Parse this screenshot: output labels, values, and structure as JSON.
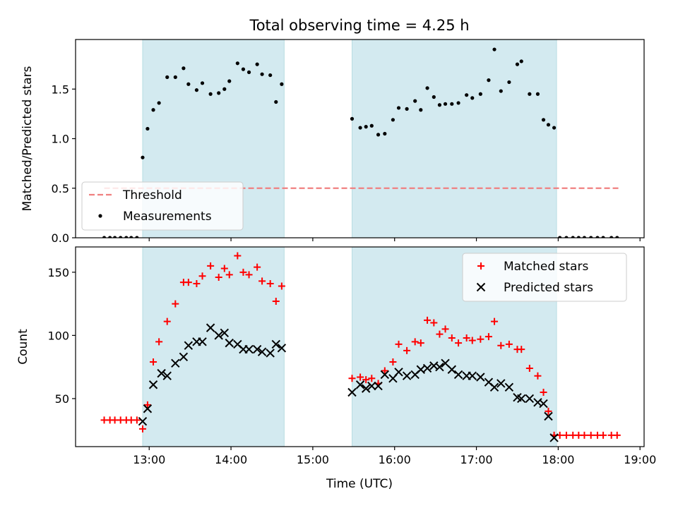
{
  "chart_data": {
    "type": "scatter",
    "title": "Total observing time = 4.25 h",
    "xlabel": "Time (UTC)",
    "x_unit": "hours UTC",
    "xlim": [
      12.1,
      19.05
    ],
    "xticks": [
      13,
      14,
      15,
      16,
      17,
      18,
      19
    ],
    "xtick_labels": [
      "13:00",
      "14:00",
      "15:00",
      "16:00",
      "17:00",
      "18:00",
      "19:00"
    ],
    "observing_windows": [
      [
        12.92,
        14.65
      ],
      [
        15.48,
        17.98
      ]
    ],
    "window_color": "#d3eaf0",
    "panels": [
      {
        "ylabel": "Matched/Predicted stars",
        "ylim": [
          0,
          2.0
        ],
        "yticks": [
          0.0,
          0.5,
          1.0,
          1.5
        ],
        "ytick_labels": [
          "0.0",
          "0.5",
          "1.0",
          "1.5"
        ],
        "legend_position": "lower-left",
        "threshold": {
          "name": "Threshold",
          "y": 0.5,
          "x_range": [
            12.45,
            18.75
          ],
          "color": "#f08080"
        },
        "series": [
          {
            "name": "Measurements",
            "marker": "dot",
            "color": "#000000",
            "points": [
              [
                12.45,
                0
              ],
              [
                12.52,
                0
              ],
              [
                12.58,
                0
              ],
              [
                12.65,
                0
              ],
              [
                12.72,
                0
              ],
              [
                12.78,
                0
              ],
              [
                12.85,
                0
              ],
              [
                12.92,
                0.81
              ],
              [
                12.98,
                1.1
              ],
              [
                13.05,
                1.29
              ],
              [
                13.12,
                1.36
              ],
              [
                13.22,
                1.62
              ],
              [
                13.32,
                1.62
              ],
              [
                13.42,
                1.71
              ],
              [
                13.48,
                1.55
              ],
              [
                13.58,
                1.49
              ],
              [
                13.65,
                1.56
              ],
              [
                13.75,
                1.45
              ],
              [
                13.85,
                1.46
              ],
              [
                13.92,
                1.5
              ],
              [
                13.98,
                1.58
              ],
              [
                14.08,
                1.76
              ],
              [
                14.15,
                1.7
              ],
              [
                14.22,
                1.67
              ],
              [
                14.32,
                1.75
              ],
              [
                14.38,
                1.65
              ],
              [
                14.48,
                1.64
              ],
              [
                14.55,
                1.37
              ],
              [
                14.62,
                1.55
              ],
              [
                15.48,
                1.2
              ],
              [
                15.58,
                1.11
              ],
              [
                15.65,
                1.12
              ],
              [
                15.72,
                1.13
              ],
              [
                15.8,
                1.04
              ],
              [
                15.88,
                1.05
              ],
              [
                15.98,
                1.19
              ],
              [
                16.05,
                1.31
              ],
              [
                16.15,
                1.3
              ],
              [
                16.25,
                1.38
              ],
              [
                16.32,
                1.29
              ],
              [
                16.4,
                1.51
              ],
              [
                16.48,
                1.42
              ],
              [
                16.55,
                1.34
              ],
              [
                16.62,
                1.35
              ],
              [
                16.7,
                1.35
              ],
              [
                16.78,
                1.36
              ],
              [
                16.88,
                1.44
              ],
              [
                16.95,
                1.41
              ],
              [
                17.05,
                1.45
              ],
              [
                17.15,
                1.59
              ],
              [
                17.22,
                1.9
              ],
              [
                17.3,
                1.48
              ],
              [
                17.4,
                1.57
              ],
              [
                17.5,
                1.75
              ],
              [
                17.55,
                1.78
              ],
              [
                17.65,
                1.45
              ],
              [
                17.75,
                1.45
              ],
              [
                17.82,
                1.19
              ],
              [
                17.88,
                1.14
              ],
              [
                17.95,
                1.11
              ],
              [
                18.02,
                0
              ],
              [
                18.1,
                0
              ],
              [
                18.18,
                0
              ],
              [
                18.25,
                0
              ],
              [
                18.32,
                0
              ],
              [
                18.4,
                0
              ],
              [
                18.48,
                0
              ],
              [
                18.55,
                0
              ],
              [
                18.65,
                0
              ],
              [
                18.72,
                0
              ]
            ]
          }
        ]
      },
      {
        "ylabel": "Count",
        "ylim": [
          12,
          170
        ],
        "yticks": [
          50,
          100,
          150
        ],
        "ytick_labels": [
          "50",
          "100",
          "150"
        ],
        "legend_position": "upper-right",
        "series": [
          {
            "name": "Matched stars",
            "marker": "plus",
            "color": "#ff0000",
            "points": [
              [
                12.45,
                33
              ],
              [
                12.52,
                33
              ],
              [
                12.58,
                33
              ],
              [
                12.65,
                33
              ],
              [
                12.72,
                33
              ],
              [
                12.78,
                33
              ],
              [
                12.85,
                33
              ],
              [
                12.92,
                26
              ],
              [
                12.98,
                45
              ],
              [
                13.05,
                79
              ],
              [
                13.12,
                95
              ],
              [
                13.22,
                111
              ],
              [
                13.32,
                125
              ],
              [
                13.42,
                142
              ],
              [
                13.48,
                142
              ],
              [
                13.58,
                141
              ],
              [
                13.65,
                147
              ],
              [
                13.75,
                155
              ],
              [
                13.85,
                146
              ],
              [
                13.92,
                153
              ],
              [
                13.98,
                148
              ],
              [
                14.08,
                163
              ],
              [
                14.15,
                150
              ],
              [
                14.22,
                148
              ],
              [
                14.32,
                154
              ],
              [
                14.38,
                143
              ],
              [
                14.48,
                141
              ],
              [
                14.55,
                127
              ],
              [
                14.62,
                139
              ],
              [
                15.48,
                66
              ],
              [
                15.58,
                67
              ],
              [
                15.65,
                65
              ],
              [
                15.72,
                66
              ],
              [
                15.8,
                62
              ],
              [
                15.88,
                72
              ],
              [
                15.98,
                79
              ],
              [
                16.05,
                93
              ],
              [
                16.15,
                88
              ],
              [
                16.25,
                95
              ],
              [
                16.32,
                94
              ],
              [
                16.4,
                112
              ],
              [
                16.48,
                110
              ],
              [
                16.55,
                101
              ],
              [
                16.62,
                105
              ],
              [
                16.7,
                98
              ],
              [
                16.78,
                94
              ],
              [
                16.88,
                98
              ],
              [
                16.95,
                96
              ],
              [
                17.05,
                97
              ],
              [
                17.15,
                99
              ],
              [
                17.22,
                111
              ],
              [
                17.3,
                92
              ],
              [
                17.4,
                93
              ],
              [
                17.5,
                89
              ],
              [
                17.55,
                89
              ],
              [
                17.65,
                74
              ],
              [
                17.75,
                68
              ],
              [
                17.82,
                55
              ],
              [
                17.88,
                40
              ],
              [
                17.95,
                21
              ],
              [
                18.02,
                21
              ],
              [
                18.1,
                21
              ],
              [
                18.18,
                21
              ],
              [
                18.25,
                21
              ],
              [
                18.32,
                21
              ],
              [
                18.4,
                21
              ],
              [
                18.48,
                21
              ],
              [
                18.55,
                21
              ],
              [
                18.65,
                21
              ],
              [
                18.72,
                21
              ]
            ]
          },
          {
            "name": "Predicted stars",
            "marker": "x",
            "color": "#000000",
            "points": [
              [
                12.92,
                32
              ],
              [
                12.98,
                42
              ],
              [
                13.05,
                61
              ],
              [
                13.15,
                70
              ],
              [
                13.22,
                68
              ],
              [
                13.32,
                78
              ],
              [
                13.42,
                83
              ],
              [
                13.48,
                92
              ],
              [
                13.58,
                95
              ],
              [
                13.65,
                95
              ],
              [
                13.75,
                106
              ],
              [
                13.85,
                100
              ],
              [
                13.92,
                102
              ],
              [
                13.98,
                94
              ],
              [
                14.08,
                93
              ],
              [
                14.15,
                89
              ],
              [
                14.22,
                89
              ],
              [
                14.32,
                89
              ],
              [
                14.38,
                87
              ],
              [
                14.48,
                86
              ],
              [
                14.55,
                93
              ],
              [
                14.62,
                90
              ],
              [
                15.48,
                55
              ],
              [
                15.58,
                61
              ],
              [
                15.65,
                58
              ],
              [
                15.72,
                60
              ],
              [
                15.8,
                60
              ],
              [
                15.88,
                69
              ],
              [
                15.98,
                66
              ],
              [
                16.05,
                71
              ],
              [
                16.15,
                68
              ],
              [
                16.25,
                69
              ],
              [
                16.32,
                73
              ],
              [
                16.4,
                74
              ],
              [
                16.48,
                76
              ],
              [
                16.55,
                75
              ],
              [
                16.62,
                78
              ],
              [
                16.7,
                73
              ],
              [
                16.78,
                69
              ],
              [
                16.88,
                68
              ],
              [
                16.95,
                68
              ],
              [
                17.05,
                67
              ],
              [
                17.15,
                63
              ],
              [
                17.22,
                59
              ],
              [
                17.3,
                62
              ],
              [
                17.4,
                59
              ],
              [
                17.5,
                51
              ],
              [
                17.55,
                50
              ],
              [
                17.65,
                50
              ],
              [
                17.75,
                47
              ],
              [
                17.82,
                46
              ],
              [
                17.88,
                36
              ],
              [
                17.95,
                19
              ]
            ]
          }
        ]
      }
    ]
  }
}
